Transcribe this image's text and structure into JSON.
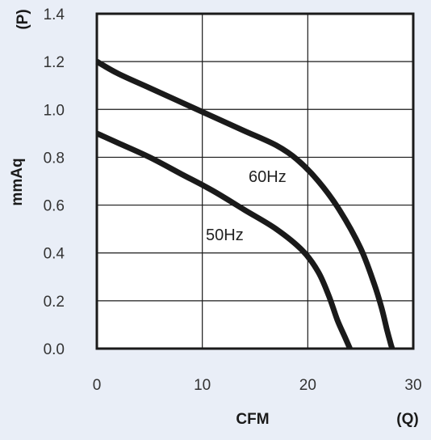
{
  "colors": {
    "panel_background": "#e9eef7",
    "plot_background": "#ffffff",
    "grid": "#1a1a1a",
    "curve": "#1a1a1a"
  },
  "chart_data": {
    "type": "line",
    "title": "",
    "xlabel": "CFM",
    "xunit": "(Q)",
    "ylabel": "mmAq",
    "yunit": "(P)",
    "xlim": [
      0,
      30
    ],
    "ylim": [
      0,
      1.4
    ],
    "xticks": [
      "0",
      "10",
      "20",
      "30"
    ],
    "yticks": [
      "0.0",
      "0.2",
      "0.4",
      "0.6",
      "0.8",
      "1.0",
      "1.2",
      "1.4"
    ],
    "grid": true,
    "series": [
      {
        "name": "60Hz",
        "x": [
          0,
          2,
          5,
          8,
          11,
          14,
          17,
          19,
          21,
          23,
          25,
          26.3,
          27,
          27.5,
          27.8,
          28
        ],
        "y": [
          1.2,
          1.15,
          1.09,
          1.03,
          0.97,
          0.91,
          0.85,
          0.79,
          0.7,
          0.58,
          0.42,
          0.27,
          0.17,
          0.08,
          0.03,
          0
        ]
      },
      {
        "name": "50Hz",
        "x": [
          0,
          2,
          5,
          8,
          11,
          14,
          17,
          19.5,
          21,
          22,
          22.8,
          23.5,
          24
        ],
        "y": [
          0.9,
          0.86,
          0.8,
          0.73,
          0.66,
          0.58,
          0.5,
          0.41,
          0.32,
          0.22,
          0.12,
          0.05,
          0
        ]
      }
    ]
  }
}
